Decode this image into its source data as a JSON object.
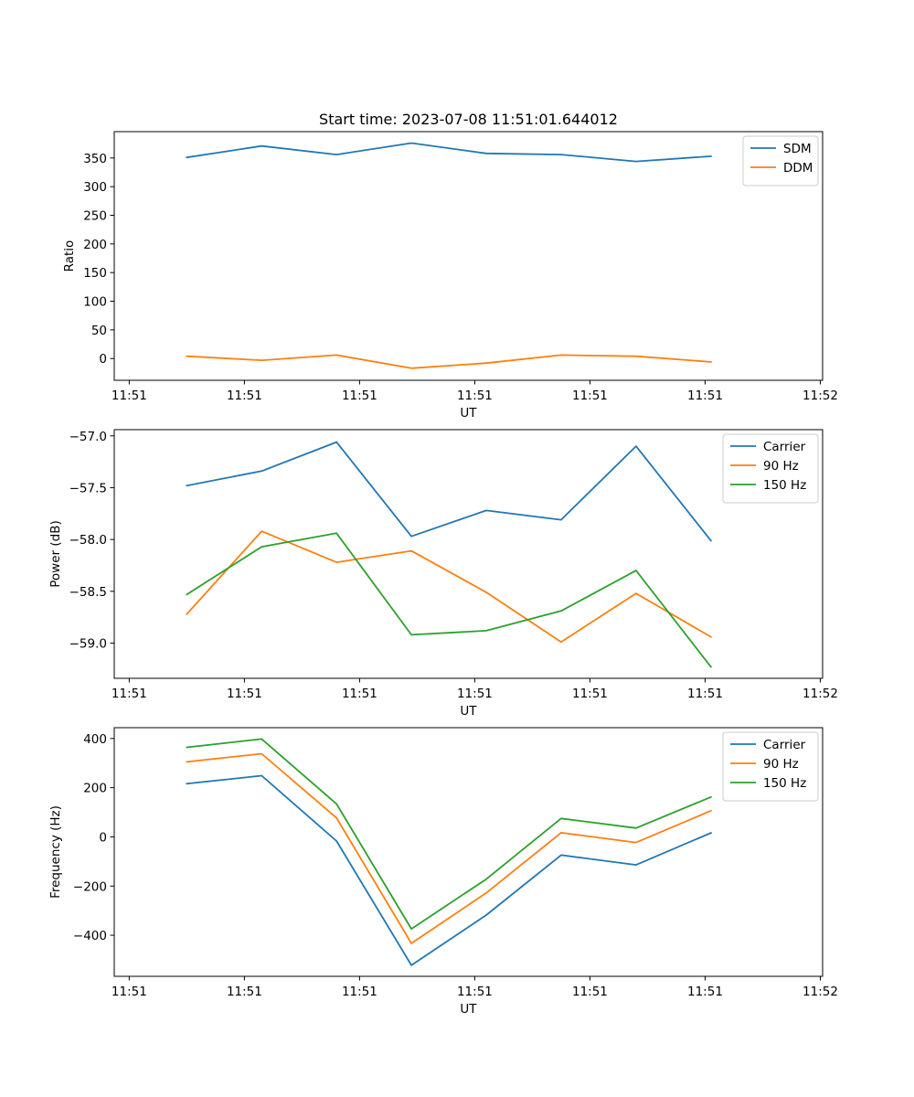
{
  "chart_data": [
    {
      "type": "line",
      "title": "Start time: 2023-07-08 11:51:01.644012",
      "xlabel": "UT",
      "ylabel": "Ratio",
      "x_tick_labels": [
        "11:51",
        "11:51",
        "11:51",
        "11:51",
        "11:51",
        "11:51",
        "11:52"
      ],
      "x_ticks": [
        0,
        1,
        2,
        3,
        4,
        5,
        6
      ],
      "xlim": [
        -0.13,
        6.02
      ],
      "ylim": [
        -38,
        396
      ],
      "y_ticks": [
        0,
        50,
        100,
        150,
        200,
        250,
        300,
        350
      ],
      "y_tick_labels": [
        "0",
        "50",
        "100",
        "150",
        "200",
        "250",
        "300",
        "350"
      ],
      "legend_position": "top-right",
      "x": [
        0.5,
        1.15,
        1.8,
        2.45,
        3.1,
        3.75,
        4.4,
        5.05
      ],
      "series": [
        {
          "name": "SDM",
          "color": "#1f77b4",
          "values": [
            351,
            371,
            356,
            376,
            358,
            356,
            344,
            353
          ]
        },
        {
          "name": "DDM",
          "color": "#ff7f0e",
          "values": [
            4,
            -3,
            6,
            -17,
            -8,
            6,
            4,
            -6
          ]
        }
      ]
    },
    {
      "type": "line",
      "title": "",
      "xlabel": "UT",
      "ylabel": "Power (dB)",
      "x_tick_labels": [
        "11:51",
        "11:51",
        "11:51",
        "11:51",
        "11:51",
        "11:51",
        "11:52"
      ],
      "x_ticks": [
        0,
        1,
        2,
        3,
        4,
        5,
        6
      ],
      "xlim": [
        -0.13,
        6.02
      ],
      "ylim": [
        -59.34,
        -56.94
      ],
      "y_ticks": [
        -59.0,
        -58.5,
        -58.0,
        -57.5,
        -57.0
      ],
      "y_tick_labels": [
        "−59.0",
        "−58.5",
        "−58.0",
        "−57.5",
        "−57.0"
      ],
      "legend_position": "top-right",
      "x": [
        0.5,
        1.15,
        1.8,
        2.45,
        3.1,
        3.75,
        4.4,
        5.05
      ],
      "series": [
        {
          "name": "Carrier",
          "color": "#1f77b4",
          "values": [
            -57.48,
            -57.34,
            -57.06,
            -57.97,
            -57.72,
            -57.81,
            -57.1,
            -58.01
          ]
        },
        {
          "name": "90 Hz",
          "color": "#ff7f0e",
          "values": [
            -58.72,
            -57.92,
            -58.22,
            -58.11,
            -58.51,
            -58.99,
            -58.52,
            -58.94
          ]
        },
        {
          "name": "150 Hz",
          "color": "#2ca02c",
          "values": [
            -58.53,
            -58.07,
            -57.94,
            -58.92,
            -58.88,
            -58.69,
            -58.3,
            -59.23
          ]
        }
      ]
    },
    {
      "type": "line",
      "title": "",
      "xlabel": "UT",
      "ylabel": "Frequency (Hz)",
      "x_tick_labels": [
        "11:51",
        "11:51",
        "11:51",
        "11:51",
        "11:51",
        "11:51",
        "11:52"
      ],
      "x_ticks": [
        0,
        1,
        2,
        3,
        4,
        5,
        6
      ],
      "xlim": [
        -0.13,
        6.02
      ],
      "ylim": [
        -567,
        444
      ],
      "y_ticks": [
        -400,
        -200,
        0,
        200,
        400
      ],
      "y_tick_labels": [
        "−400",
        "−200",
        "0",
        "200",
        "400"
      ],
      "legend_position": "top-right",
      "x": [
        0.5,
        1.15,
        1.8,
        2.45,
        3.1,
        3.75,
        4.4,
        5.05
      ],
      "series": [
        {
          "name": "Carrier",
          "color": "#1f77b4",
          "values": [
            216,
            249,
            -17,
            -522,
            -318,
            -74,
            -114,
            16
          ]
        },
        {
          "name": "90 Hz",
          "color": "#ff7f0e",
          "values": [
            305,
            338,
            77,
            -433,
            -228,
            17,
            -23,
            106
          ]
        },
        {
          "name": "150 Hz",
          "color": "#2ca02c",
          "values": [
            364,
            398,
            134,
            -374,
            -172,
            75,
            36,
            162
          ]
        }
      ]
    }
  ]
}
